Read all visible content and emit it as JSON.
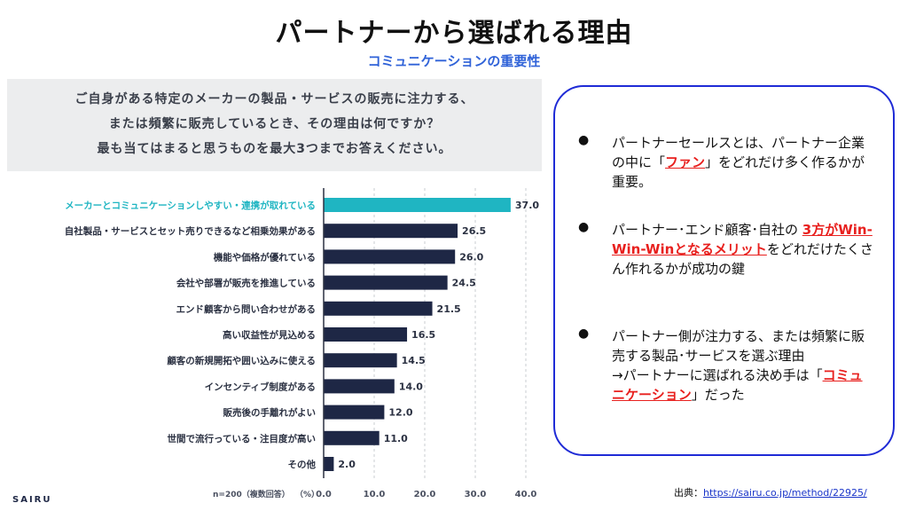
{
  "slide": {
    "title": "パートナーから選ばれる理由",
    "subtitle": "コミュニケーションの重要性"
  },
  "question": {
    "lines": [
      "ご自身がある特定のメーカーの製品・サービスの販売に注力する、",
      "または頻繁に販売しているとき、その理由は何ですか？",
      "最も当てはまると思うものを最大3つまでお答えください。"
    ]
  },
  "chart_data": {
    "type": "bar",
    "orientation": "horizontal",
    "categories": [
      "メーカーとコミュニケーションしやすい・連携が取れている",
      "自社製品・サービスとセット売りできるなど相乗効果がある",
      "機能や価格が優れている",
      "会社や部署が販売を推進している",
      "エンド顧客から問い合わせがある",
      "高い収益性が見込める",
      "顧客の新規開拓や囲い込みに使える",
      "インセンティブ制度がある",
      "販売後の手離れがよい",
      "世間で流行っている・注目度が高い",
      "その他"
    ],
    "values": [
      37.0,
      26.5,
      26.0,
      24.5,
      21.5,
      16.5,
      14.5,
      14.0,
      12.0,
      11.0,
      2.0
    ],
    "value_labels": [
      "37.0",
      "26.5",
      "26.0",
      "24.5",
      "21.5",
      "16.5",
      "14.5",
      "14.0",
      "12.0",
      "11.0",
      "2.0"
    ],
    "xticks": [
      "0.0",
      "10.0",
      "20.0",
      "30.0",
      "40.0"
    ],
    "xlim": [
      0,
      40
    ],
    "note": "n=200（複数回答）",
    "unit": "（%）",
    "highlight_color": "#1fb5c2",
    "bar_color": "#1e2745",
    "grid": true
  },
  "brand": "SAIRU",
  "panel": {
    "bullets": [
      {
        "parts": [
          {
            "text": "パートナーセールスとは、パートナー企業の中に「",
            "hl": false
          },
          {
            "text": "ファン",
            "hl": true
          },
          {
            "text": "」をどれだけ多く作るかが重要。",
            "hl": false
          }
        ]
      },
      {
        "parts": [
          {
            "text": "パートナー･エンド顧客･自社の ",
            "hl": false
          },
          {
            "text": "3方がWin-Win-Winとなるメリット",
            "hl": true
          },
          {
            "text": "をどれだけたくさん作れるかが成功の鍵",
            "hl": false
          }
        ]
      },
      {
        "parts": [
          {
            "text": "パートナー側が注力する、または頻繁に販売する製品･サービスを選ぶ理由",
            "hl": false
          },
          {
            "text": "\n→パートナーに選ばれる決め手は「",
            "hl": false
          },
          {
            "text": "コミュニケーション",
            "hl": true
          },
          {
            "text": "」だった",
            "hl": false
          }
        ]
      }
    ]
  },
  "source": {
    "label": "出典：",
    "url": "https://sairu.co.jp/method/22925/"
  }
}
